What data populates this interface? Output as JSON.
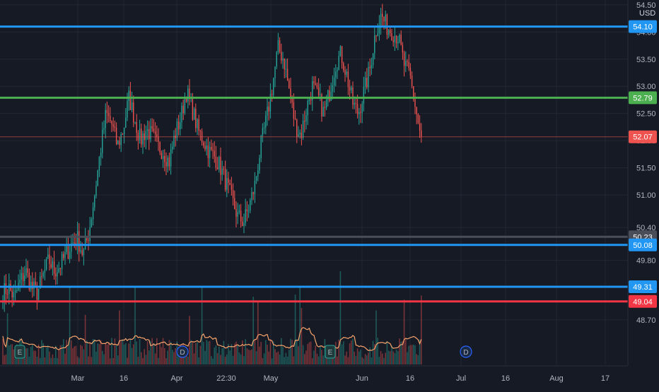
{
  "currency": "USD",
  "colors": {
    "background": "#161a25",
    "grid": "#232733",
    "up": "#26a69a",
    "down": "#ef5350",
    "volume_ma": "#f7a26b",
    "text": "#b2b5be"
  },
  "chart_data": {
    "type": "candlestick",
    "ylim": [
      48.4,
      54.55
    ],
    "y_ticks": [
      54.5,
      54.0,
      53.5,
      53.0,
      52.5,
      52.0,
      51.5,
      51.0,
      50.4,
      49.8,
      48.7
    ],
    "x_tick_labels": [
      "Mar",
      "16",
      "Apr",
      "22:30",
      "May",
      "Jun",
      "16",
      "Jul",
      "16",
      "Aug",
      "17"
    ],
    "horizontal_lines": [
      {
        "value": 54.1,
        "label": "54.10",
        "color": "#2196f3"
      },
      {
        "value": 52.79,
        "label": "52.79",
        "color": "#4caf50"
      },
      {
        "value": 52.07,
        "label": "52.07",
        "color": "#ef5350"
      },
      {
        "value": 50.23,
        "label": "50.23",
        "color": "#4a4e59"
      },
      {
        "value": 50.08,
        "label": "50.08",
        "color": "#2196f3"
      },
      {
        "value": 49.31,
        "label": "49.31",
        "color": "#2196f3"
      },
      {
        "value": 49.04,
        "label": "49.04",
        "color": "#f23645"
      }
    ],
    "event_markers": [
      "E",
      "D",
      "E",
      "D"
    ],
    "close_series": [
      49.2,
      49.3,
      49.1,
      49.4,
      49.6,
      49.3,
      49.2,
      49.5,
      49.8,
      49.6,
      49.7,
      49.9,
      50.1,
      50.2,
      49.9,
      50.3,
      51.0,
      51.8,
      52.5,
      52.3,
      51.9,
      52.2,
      52.8,
      52.4,
      52.0,
      52.2,
      52.1,
      51.9,
      51.8,
      51.6,
      52.1,
      52.4,
      52.9,
      52.6,
      52.2,
      52.0,
      51.8,
      51.7,
      51.5,
      51.2,
      50.9,
      50.6,
      50.5,
      50.8,
      51.2,
      51.9,
      52.4,
      53.0,
      53.7,
      53.5,
      52.9,
      52.3,
      52.1,
      52.6,
      53.0,
      52.8,
      52.5,
      52.9,
      53.4,
      53.6,
      53.2,
      52.7,
      52.5,
      52.9,
      53.3,
      54.0,
      54.3,
      54.1,
      54.0,
      53.9,
      53.4,
      53.2,
      52.6,
      52.0
    ]
  }
}
